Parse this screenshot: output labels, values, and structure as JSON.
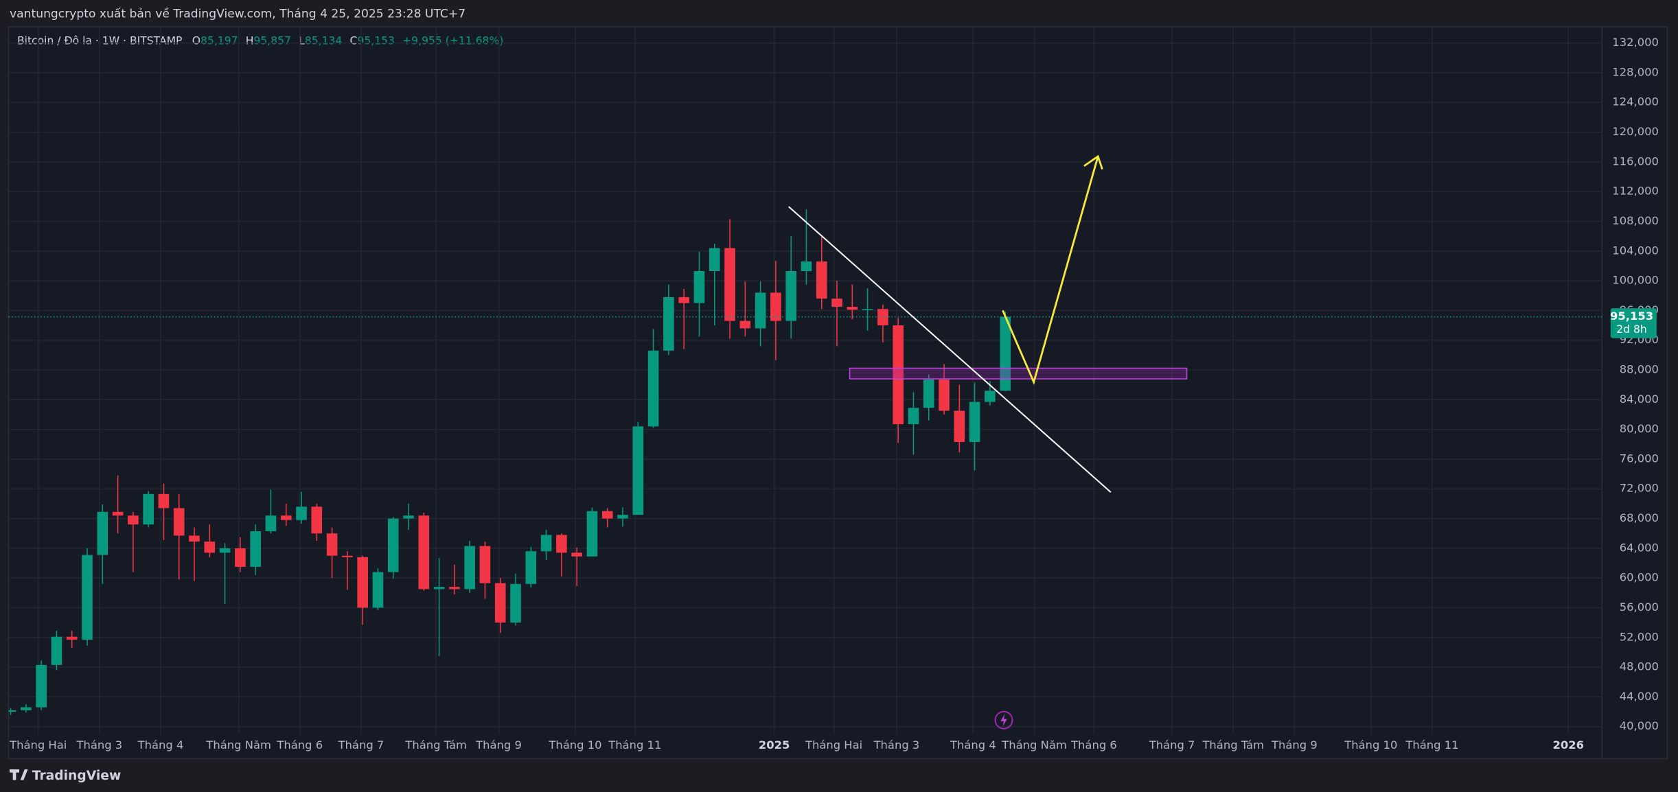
{
  "header": {
    "publisher": "vantungcrypto xuất bản về TradingView.com, Tháng 4 25, 2025 23:28 UTC+7",
    "symbol": "Bitcoin / Đô la · 1W · BITSTAMP",
    "open_label": "O",
    "open": "85,197",
    "high_label": "H",
    "high": "95,857",
    "low_label": "L",
    "low": "85,134",
    "close_label": "C",
    "close": "95,153",
    "change": "+9,955 (+11.68%)"
  },
  "footer": {
    "brand": "TradingView"
  },
  "chart_data": {
    "type": "candlestick",
    "up_color": "#089981",
    "down_color": "#f23645",
    "grid": true,
    "open": [
      42000,
      42200,
      42600,
      48300,
      52100,
      51700,
      63100,
      68900,
      68400,
      67200,
      71300,
      69400,
      65700,
      64900,
      63400,
      64000,
      61500,
      66300,
      68400,
      67800,
      69600,
      66000,
      63000,
      62800,
      56000,
      60800,
      68000,
      68400,
      58500,
      58800,
      58500,
      64300,
      59300,
      54000,
      59200,
      63600,
      65800,
      63400,
      62900,
      69000,
      68000,
      68500,
      80400,
      90600,
      97800,
      97000,
      101300,
      104400,
      94600,
      93600,
      98400,
      94600,
      101300,
      102600,
      97600,
      96500,
      96100,
      96200,
      94000,
      80700,
      82900,
      86700,
      82500,
      78300,
      83700,
      85197
    ],
    "high": [
      42500,
      43000,
      48900,
      52900,
      52900,
      64000,
      69900,
      73800,
      68900,
      71700,
      72700,
      71300,
      66800,
      67200,
      64700,
      65500,
      67200,
      71900,
      70000,
      71600,
      70000,
      66800,
      63600,
      63000,
      61300,
      68200,
      70000,
      68800,
      62700,
      61800,
      65000,
      64900,
      60000,
      60600,
      64200,
      66500,
      66000,
      64100,
      69500,
      69400,
      69500,
      81000,
      93500,
      99500,
      98900,
      103900,
      105000,
      108300,
      99900,
      99900,
      102700,
      106000,
      109600,
      106000,
      100000,
      99500,
      99000,
      96800,
      95000,
      85000,
      87400,
      88800,
      86000,
      86300,
      86500,
      95857
    ],
    "low": [
      41600,
      41900,
      42200,
      47600,
      50600,
      50900,
      59200,
      66000,
      60800,
      66800,
      65100,
      59800,
      59600,
      62800,
      56500,
      60800,
      60400,
      66000,
      67000,
      67300,
      65000,
      60000,
      58400,
      53700,
      55700,
      59900,
      66500,
      58300,
      49500,
      57800,
      58000,
      57200,
      52600,
      53600,
      58700,
      62400,
      60200,
      58900,
      62900,
      66800,
      66900,
      68500,
      80200,
      90000,
      90800,
      92500,
      94000,
      92200,
      92500,
      91200,
      89300,
      92200,
      99500,
      96200,
      91200,
      94800,
      93300,
      91700,
      78200,
      76600,
      81200,
      82000,
      76900,
      74500,
      83200,
      85134
    ],
    "close": [
      42200,
      42600,
      48300,
      52100,
      51700,
      63100,
      68900,
      68400,
      67200,
      71300,
      69400,
      65700,
      64900,
      63400,
      64000,
      61500,
      66300,
      68400,
      67800,
      69600,
      66000,
      63000,
      62800,
      56000,
      60800,
      68000,
      68400,
      58500,
      58800,
      58500,
      64300,
      59300,
      54000,
      59200,
      63600,
      65800,
      63400,
      62900,
      69000,
      68000,
      68500,
      80400,
      90600,
      97800,
      97000,
      101300,
      104400,
      94600,
      93600,
      98400,
      94600,
      101300,
      102600,
      97600,
      96500,
      96100,
      96200,
      94000,
      80700,
      82900,
      86700,
      82500,
      78300,
      83700,
      85200,
      95153
    ],
    "last_price": {
      "value": 95153,
      "label": "95,153"
    },
    "countdown": "2d 8h",
    "xlim": [
      -0.14,
      104.0
    ],
    "xticks": [
      {
        "value": 1.8,
        "label": "Tháng Hai"
      },
      {
        "value": 5.8,
        "label": "Tháng 3"
      },
      {
        "value": 9.8,
        "label": "Tháng 4"
      },
      {
        "value": 14.9,
        "label": "Tháng Năm"
      },
      {
        "value": 18.9,
        "label": "Tháng 6"
      },
      {
        "value": 22.9,
        "label": "Tháng 7"
      },
      {
        "value": 27.8,
        "label": "Tháng Tám"
      },
      {
        "value": 31.9,
        "label": "Tháng 9"
      },
      {
        "value": 36.9,
        "label": "Tháng 10"
      },
      {
        "value": 40.8,
        "label": "Tháng 11"
      },
      {
        "value": 49.9,
        "label": "2025"
      },
      {
        "value": 53.8,
        "label": "Tháng Hai"
      },
      {
        "value": 57.9,
        "label": "Tháng 3"
      },
      {
        "value": 62.9,
        "label": "Tháng 4"
      },
      {
        "value": 66.9,
        "label": "Tháng Năm"
      },
      {
        "value": 70.8,
        "label": "Tháng 6"
      },
      {
        "value": 75.9,
        "label": "Tháng 7"
      },
      {
        "value": 79.9,
        "label": "Tháng Tám"
      },
      {
        "value": 83.9,
        "label": "Tháng 9"
      },
      {
        "value": 88.9,
        "label": "Tháng 10"
      },
      {
        "value": 92.9,
        "label": "Tháng 11"
      },
      {
        "value": 101.8,
        "label": "2026"
      }
    ],
    "ylim": [
      39000,
      134160
    ],
    "yticks": [
      {
        "value": 40000,
        "label": "40,000"
      },
      {
        "value": 44000,
        "label": "44,000"
      },
      {
        "value": 48000,
        "label": "48,000"
      },
      {
        "value": 52000,
        "label": "52,000"
      },
      {
        "value": 56000,
        "label": "56,000"
      },
      {
        "value": 60000,
        "label": "60,000"
      },
      {
        "value": 64000,
        "label": "64,000"
      },
      {
        "value": 68000,
        "label": "68,000"
      },
      {
        "value": 72000,
        "label": "72,000"
      },
      {
        "value": 76000,
        "label": "76,000"
      },
      {
        "value": 80000,
        "label": "80,000"
      },
      {
        "value": 84000,
        "label": "84,000"
      },
      {
        "value": 88000,
        "label": "88,000"
      },
      {
        "value": 92000,
        "label": "92,000"
      },
      {
        "value": 96000,
        "label": "96,000"
      },
      {
        "value": 100000,
        "label": "100,000"
      },
      {
        "value": 104000,
        "label": "104,000"
      },
      {
        "value": 108000,
        "label": "108,000"
      },
      {
        "value": 112000,
        "label": "112,000"
      },
      {
        "value": 116000,
        "label": "116,000"
      },
      {
        "value": 120000,
        "label": "120,000"
      },
      {
        "value": 124000,
        "label": "124,000"
      },
      {
        "value": 128000,
        "label": "128,000"
      },
      {
        "value": 132000,
        "label": "132,000"
      }
    ]
  }
}
